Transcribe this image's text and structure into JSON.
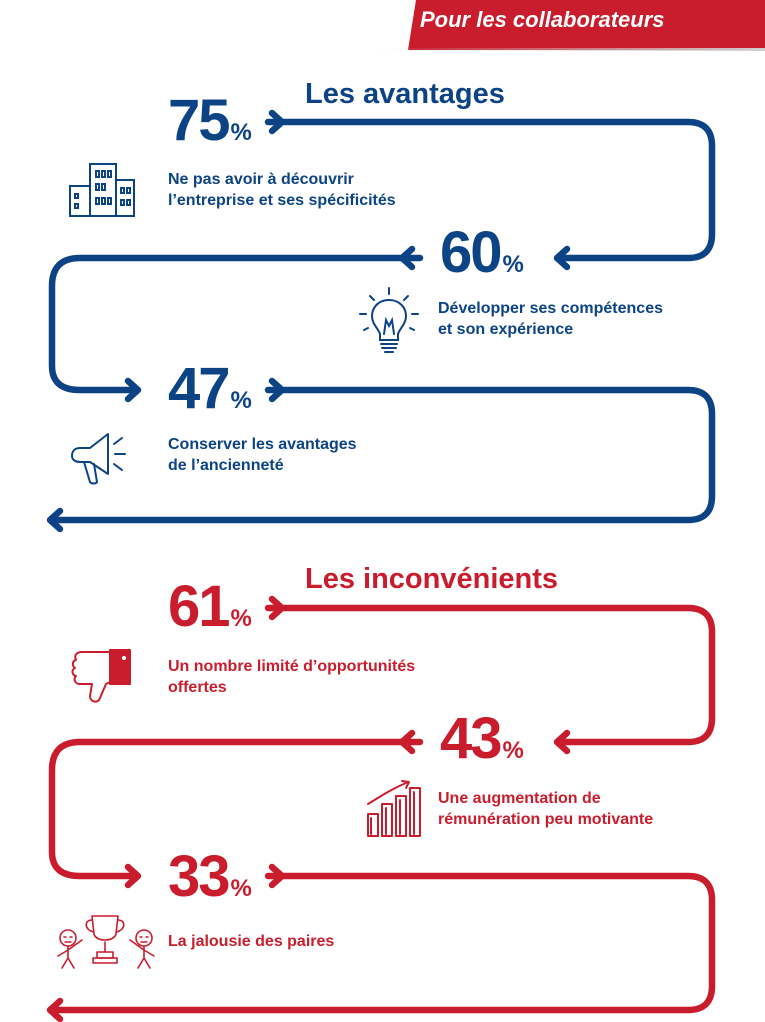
{
  "header": {
    "title": "Pour les collaborateurs"
  },
  "colors": {
    "blue": "#0b4385",
    "red": "#c91d2e"
  },
  "advantages": {
    "title": "Les avantages",
    "items": [
      {
        "value": "75",
        "unit": "%",
        "line1": "Ne pas avoir à découvrir",
        "line2": "l’entreprise et ses spécificités",
        "icon": "building-icon"
      },
      {
        "value": "60",
        "unit": "%",
        "line1": "Développer ses compétences",
        "line2": "et son expérience",
        "icon": "lightbulb-icon"
      },
      {
        "value": "47",
        "unit": "%",
        "line1": "Conserver les avantages",
        "line2": "de l’ancienneté",
        "icon": "megaphone-icon"
      }
    ]
  },
  "disadvantages": {
    "title": "Les inconvénients",
    "items": [
      {
        "value": "61",
        "unit": "%",
        "line1": "Un nombre limité d’opportunités",
        "line2": "offertes",
        "icon": "thumbs-down-icon"
      },
      {
        "value": "43",
        "unit": "%",
        "line1": "Une augmentation de",
        "line2": "rémunération peu motivante",
        "icon": "bar-chart-growth-icon"
      },
      {
        "value": "33",
        "unit": "%",
        "line1": "La jalousie des paires",
        "line2": "",
        "icon": "trophy-jealousy-icon"
      }
    ]
  }
}
